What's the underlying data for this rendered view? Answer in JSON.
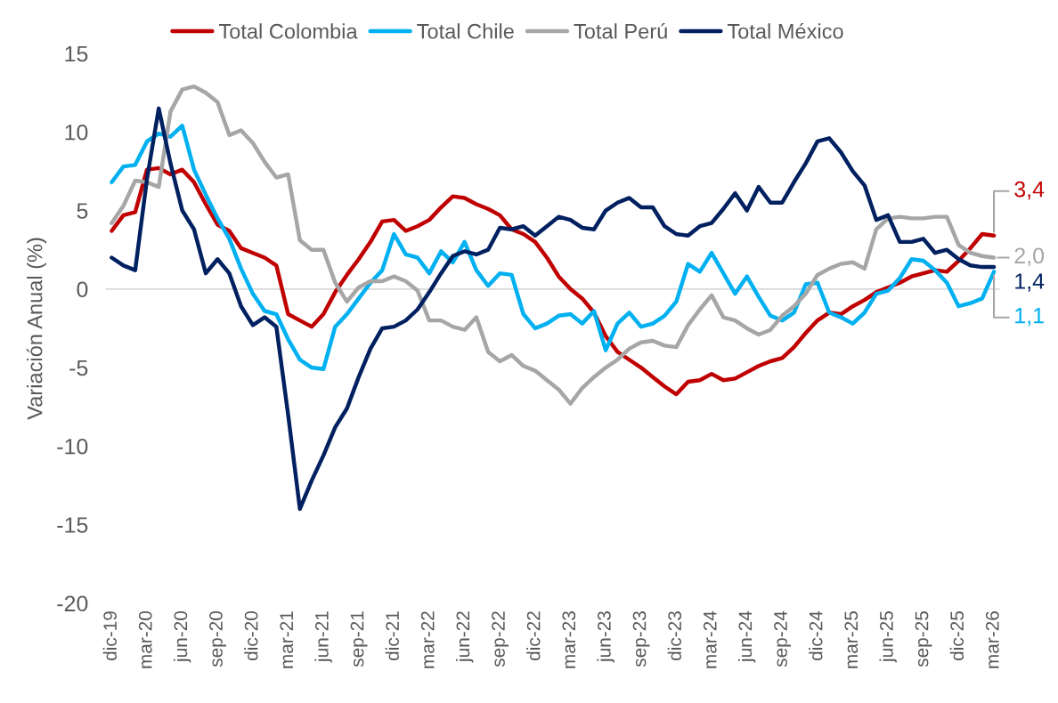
{
  "chart_data": {
    "type": "line",
    "ylabel": "Variación Anual (%)",
    "categories": [
      "dic-19",
      null,
      null,
      "mar-20",
      null,
      null,
      "jun-20",
      null,
      null,
      "sep-20",
      null,
      null,
      "dic-20",
      null,
      null,
      "mar-21",
      null,
      null,
      "jun-21",
      null,
      null,
      "sep-21",
      null,
      null,
      "dic-21",
      null,
      null,
      "mar-22",
      null,
      null,
      "jun-22",
      null,
      null,
      "sep-22",
      null,
      null,
      "dic-22",
      null,
      null,
      "mar-23",
      null,
      null,
      "jun-23",
      null,
      null,
      "sep-23",
      null,
      null,
      "dic-23",
      null,
      null,
      "mar-24",
      null,
      null,
      "jun-24",
      null,
      null,
      "sep-24",
      null,
      null,
      "dic-24",
      null,
      null,
      "mar-25",
      null,
      null,
      "jun-25",
      null,
      null,
      "sep-25",
      null,
      null,
      "dic-25",
      null,
      null,
      "mar-26"
    ],
    "series": [
      {
        "name": "Total Colombia",
        "color": "#c00000",
        "values": [
          3.7,
          4.7,
          4.9,
          7.6,
          7.7,
          7.3,
          7.6,
          6.8,
          5.4,
          4.1,
          3.7,
          2.6,
          2.3,
          2.0,
          1.5,
          -1.6,
          -2.0,
          -2.4,
          -1.6,
          -0.2,
          0.9,
          1.9,
          3.0,
          4.3,
          4.4,
          3.7,
          4.0,
          4.4,
          5.2,
          5.9,
          5.8,
          5.4,
          5.1,
          4.7,
          3.8,
          3.5,
          3.0,
          2.0,
          0.8,
          0.0,
          -0.6,
          -1.5,
          -3.0,
          -4.0,
          -4.5,
          -5.0,
          -5.6,
          -6.2,
          -6.7,
          -5.9,
          -5.8,
          -5.4,
          -5.8,
          -5.7,
          -5.3,
          -4.9,
          -4.6,
          -4.4,
          -3.7,
          -2.8,
          -2.0,
          -1.5,
          -1.6,
          -1.1,
          -0.7,
          -0.2,
          0.1,
          0.4,
          0.8,
          1.0,
          1.2,
          1.1,
          1.8,
          2.6,
          3.5,
          3.4
        ]
      },
      {
        "name": "Total Chile",
        "color": "#00b0f0",
        "values": [
          6.8,
          7.8,
          7.9,
          9.4,
          9.9,
          9.7,
          10.4,
          7.6,
          6.0,
          4.5,
          3.2,
          1.3,
          -0.3,
          -1.4,
          -1.6,
          -3.2,
          -4.5,
          -5.0,
          -5.1,
          -2.4,
          -1.6,
          -0.6,
          0.4,
          1.2,
          3.5,
          2.2,
          2.0,
          1.0,
          2.4,
          1.7,
          3.0,
          1.2,
          0.2,
          1.0,
          0.9,
          -1.6,
          -2.5,
          -2.2,
          -1.7,
          -1.6,
          -2.2,
          -1.4,
          -3.9,
          -2.2,
          -1.5,
          -2.4,
          -2.2,
          -1.7,
          -0.8,
          1.6,
          1.1,
          2.3,
          1.0,
          -0.3,
          0.8,
          -0.5,
          -1.7,
          -2.0,
          -1.5,
          0.3,
          0.4,
          -1.5,
          -1.8,
          -2.2,
          -1.5,
          -0.3,
          -0.1,
          0.7,
          1.9,
          1.8,
          1.2,
          0.4,
          -1.1,
          -0.9,
          -0.6,
          1.1
        ]
      },
      {
        "name": "Total Perú",
        "color": "#a6a6a6",
        "values": [
          4.2,
          5.3,
          6.9,
          6.8,
          6.5,
          11.3,
          12.7,
          12.9,
          12.5,
          11.9,
          9.8,
          10.1,
          9.3,
          8.1,
          7.1,
          7.3,
          3.1,
          2.5,
          2.5,
          0.4,
          -0.8,
          0.1,
          0.5,
          0.5,
          0.8,
          0.5,
          -0.1,
          -2.0,
          -2.0,
          -2.4,
          -2.6,
          -1.8,
          -4.0,
          -4.6,
          -4.2,
          -4.9,
          -5.2,
          -5.8,
          -6.4,
          -7.3,
          -6.3,
          -5.6,
          -5.0,
          -4.5,
          -3.8,
          -3.4,
          -3.3,
          -3.6,
          -3.7,
          -2.3,
          -1.3,
          -0.4,
          -1.8,
          -2.0,
          -2.5,
          -2.9,
          -2.6,
          -1.7,
          -1.1,
          -0.3,
          0.9,
          1.3,
          1.6,
          1.7,
          1.3,
          3.8,
          4.5,
          4.6,
          4.5,
          4.5,
          4.6,
          4.6,
          2.8,
          2.3,
          2.1,
          2.0
        ]
      },
      {
        "name": "Total México",
        "color": "#002060",
        "values": [
          2.0,
          1.5,
          1.2,
          7.0,
          11.5,
          8.0,
          5.0,
          3.8,
          1.0,
          1.9,
          1.0,
          -1.1,
          -2.3,
          -1.8,
          -2.4,
          -8.0,
          -14.0,
          -12.2,
          -10.6,
          -8.8,
          -7.6,
          -5.6,
          -3.8,
          -2.5,
          -2.4,
          -2.0,
          -1.3,
          -0.2,
          1.0,
          2.1,
          2.4,
          2.2,
          2.5,
          3.9,
          3.8,
          4.0,
          3.4,
          4.0,
          4.6,
          4.4,
          3.9,
          3.8,
          5.0,
          5.5,
          5.8,
          5.2,
          5.2,
          4.0,
          3.5,
          3.4,
          4.0,
          4.2,
          5.1,
          6.1,
          5.0,
          6.5,
          5.5,
          5.5,
          6.8,
          8.0,
          9.4,
          9.6,
          8.7,
          7.5,
          6.6,
          4.4,
          4.7,
          3.0,
          3.0,
          3.2,
          2.3,
          2.5,
          1.9,
          1.5,
          1.4,
          1.4
        ]
      }
    ],
    "annotations": [
      {
        "text": "3,4",
        "x": "mar-26",
        "y": 3.4
      },
      {
        "text": "1,1",
        "x": "mar-26",
        "y": 1.1
      },
      {
        "text": "2,0",
        "x": "mar-26",
        "y": 2.0
      },
      {
        "text": "1,4",
        "x": "mar-26",
        "y": 1.4
      }
    ],
    "ylim": [
      -20,
      15
    ],
    "yticks": [
      -20,
      -15,
      -10,
      -5,
      0,
      5,
      10,
      15
    ],
    "ref_lines": [
      {
        "axis": "y",
        "value": 0,
        "color": "#d9d9d9"
      }
    ],
    "grid": false,
    "legend": "top",
    "marker": "none",
    "line_style": "solid"
  }
}
